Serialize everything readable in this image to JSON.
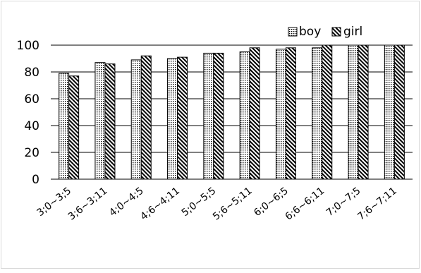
{
  "chart_data": {
    "type": "bar",
    "title": "",
    "xlabel": "",
    "ylabel": "",
    "ylim": [
      0,
      100
    ],
    "yticks": [
      0,
      20,
      40,
      60,
      80,
      100
    ],
    "grid": true,
    "legend_position": "top-right",
    "categories": [
      "3;0~3;5",
      "3;6~3;11",
      "4;0~4;5",
      "4;6~4;11",
      "5;0~5;5",
      "5;6~5;11",
      "6;0~6;5",
      "6;6~6;11",
      "7;0~7;5",
      "7;6~7;11"
    ],
    "series": [
      {
        "name": "boy",
        "pattern": "dots",
        "values": [
          79,
          87,
          89,
          90,
          94,
          95,
          97,
          98,
          100,
          100
        ]
      },
      {
        "name": "girl",
        "pattern": "diagonal-hatch",
        "values": [
          77,
          86,
          92,
          91,
          94,
          98,
          98,
          100,
          100,
          100
        ]
      }
    ]
  }
}
